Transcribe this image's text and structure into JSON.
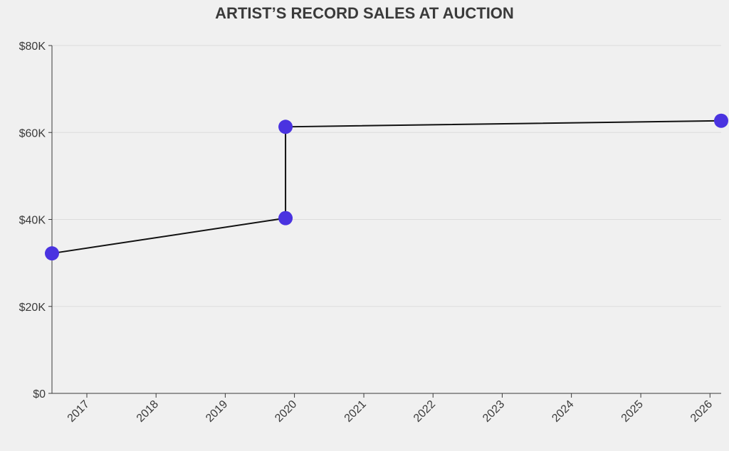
{
  "chart_data": {
    "type": "line",
    "title": "ARTIST’S RECORD SALES AT AUCTION",
    "xlabel": "",
    "ylabel": "",
    "x_axis": {
      "type": "time",
      "range": [
        "2016-07-01",
        "2026-03-01"
      ],
      "ticks": [
        "2017",
        "2018",
        "2019",
        "2020",
        "2021",
        "2022",
        "2023",
        "2024",
        "2025",
        "2026"
      ]
    },
    "y_axis": {
      "range": [
        0,
        80000
      ],
      "ticks": [
        {
          "value": 0,
          "label": "$0"
        },
        {
          "value": 20000,
          "label": "$20K"
        },
        {
          "value": 40000,
          "label": "$40K"
        },
        {
          "value": 60000,
          "label": "$60K"
        },
        {
          "value": 80000,
          "label": "$80K"
        }
      ]
    },
    "grid": true,
    "series": [
      {
        "points": [
          {
            "x": "2016-07-01",
            "y": 32200
          },
          {
            "x": "2019-11-15",
            "y": 40300
          },
          {
            "x": "2019-11-15",
            "y": 61300
          },
          {
            "x": "2026-03-01",
            "y": 62700
          }
        ]
      }
    ],
    "colors": {
      "line": "#111111",
      "marker": "#4a33e0",
      "background": "#f0f0f0",
      "grid": "#dcdcdc",
      "text": "#3a3a3a"
    }
  }
}
